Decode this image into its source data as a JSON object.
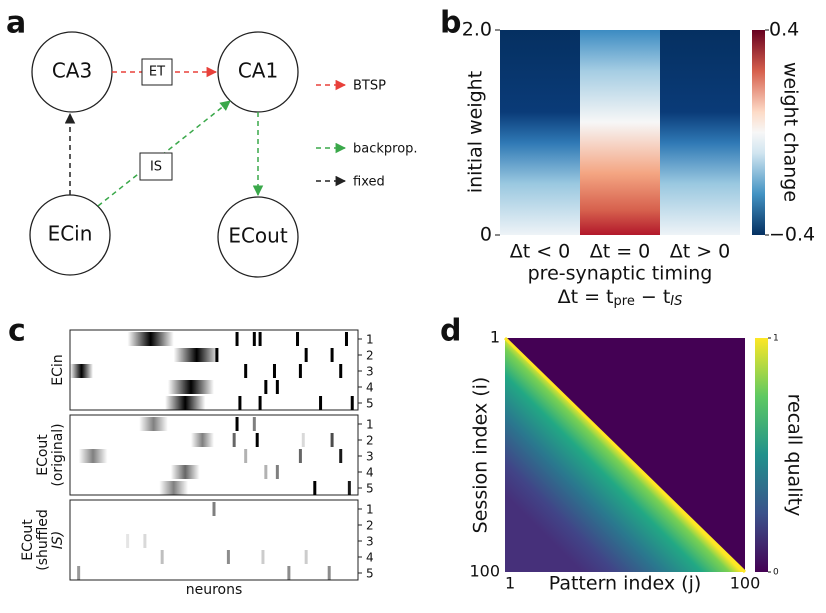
{
  "panel_a": {
    "label": "a",
    "nodes": [
      {
        "label": "CA3"
      },
      {
        "label": "CA1"
      },
      {
        "label": "ECin"
      },
      {
        "label": "ECout"
      }
    ],
    "edge_labels": [
      "ET",
      "IS"
    ],
    "legend": [
      {
        "name": "BTSP",
        "color": "#e8403a"
      },
      {
        "name": "backprop.",
        "color": "#3aa84a"
      },
      {
        "name": "fixed",
        "color": "#222222"
      }
    ]
  },
  "panel_b": {
    "label": "b",
    "ylabel": "initial weight",
    "yticks": [
      {
        "value": 2,
        "label": "2.0"
      },
      0
    ],
    "ylim": [
      0,
      2
    ],
    "categories": [
      "Δt < 0",
      "Δt = 0",
      "Δt > 0"
    ],
    "xlabel": "pre-synaptic timing",
    "formula": [
      "Δt = t",
      "pre",
      " − t",
      "IS"
    ],
    "colorbar_label": "weight change",
    "colorbar_ticks": [
      0.4,
      {
        "value": -0.4,
        "label": "−0.4"
      }
    ],
    "colorbar_lim": [
      -0.4,
      0.4
    ]
  },
  "panel_c": {
    "label": "c",
    "xlabel": "neurons",
    "row_labels": [
      1,
      2,
      3,
      4,
      5
    ],
    "panels": [
      {
        "ylabel_lines": [
          "ECin"
        ],
        "blobs": [
          [
            1,
            28,
            16,
            1
          ],
          [
            2,
            44,
            16,
            1
          ],
          [
            3,
            2,
            12,
            1
          ],
          [
            4,
            42,
            16,
            1
          ],
          [
            5,
            40,
            14,
            1
          ]
        ],
        "spikes": [
          [
            1,
            58,
            1
          ],
          [
            1,
            64,
            1
          ],
          [
            1,
            66,
            1
          ],
          [
            1,
            79,
            1
          ],
          [
            1,
            96,
            1
          ],
          [
            2,
            51,
            1
          ],
          [
            2,
            82,
            1
          ],
          [
            2,
            91,
            1
          ],
          [
            3,
            61,
            1
          ],
          [
            3,
            71,
            1
          ],
          [
            3,
            80,
            1
          ],
          [
            3,
            94,
            1
          ],
          [
            4,
            68,
            1
          ],
          [
            4,
            72,
            1
          ],
          [
            5,
            59,
            1
          ],
          [
            5,
            66,
            1
          ],
          [
            5,
            87,
            1
          ],
          [
            5,
            98,
            1
          ]
        ]
      },
      {
        "ylabel_lines": [
          "ECout",
          "(original)"
        ],
        "blobs": [
          [
            1,
            29,
            10,
            0.5
          ],
          [
            2,
            46,
            8,
            0.5
          ],
          [
            3,
            8,
            10,
            0.5
          ],
          [
            4,
            40,
            10,
            0.6
          ],
          [
            5,
            36,
            10,
            0.5
          ]
        ],
        "spikes": [
          [
            1,
            58,
            1
          ],
          [
            1,
            64,
            0.5
          ],
          [
            2,
            57,
            0.6
          ],
          [
            2,
            65,
            1
          ],
          [
            2,
            81,
            0.15
          ],
          [
            2,
            91,
            0.7
          ],
          [
            3,
            61,
            0.3
          ],
          [
            3,
            80,
            0.6
          ],
          [
            3,
            94,
            0.9
          ],
          [
            4,
            68,
            0.3
          ],
          [
            4,
            72,
            0.5
          ],
          [
            5,
            85,
            1
          ],
          [
            5,
            97,
            0.9
          ]
        ]
      },
      {
        "ylabel_lines": [
          "ECout",
          "(shuffled",
          "IS)"
        ],
        "blobs": [],
        "spikes": [
          [
            1,
            50,
            0.5
          ],
          [
            3,
            26,
            0.15
          ],
          [
            3,
            20,
            0.1
          ],
          [
            4,
            32,
            0.25
          ],
          [
            4,
            55,
            0.45
          ],
          [
            4,
            67,
            0.2
          ],
          [
            4,
            82,
            0.2
          ],
          [
            5,
            3,
            0.4
          ],
          [
            5,
            76,
            0.45
          ],
          [
            5,
            90,
            0.45
          ]
        ]
      }
    ]
  },
  "panel_d": {
    "label": "d",
    "ylabel": "Session index (i)",
    "xlabel": "Pattern index (j)",
    "xticks": [
      1,
      100
    ],
    "yticks": [
      1,
      100
    ],
    "lim": [
      1,
      100
    ],
    "colorbar_label": "recall quality",
    "colorbar_ticks": [
      1,
      0
    ],
    "colorbar_lim": [
      0,
      1
    ]
  }
}
